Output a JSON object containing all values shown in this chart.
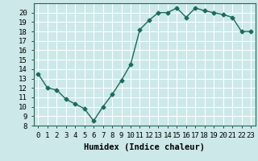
{
  "x": [
    0,
    1,
    2,
    3,
    4,
    5,
    6,
    7,
    8,
    9,
    10,
    11,
    12,
    13,
    14,
    15,
    16,
    17,
    18,
    19,
    20,
    21,
    22,
    23
  ],
  "y": [
    13.5,
    12.0,
    11.8,
    10.8,
    10.3,
    9.8,
    8.5,
    10.0,
    11.3,
    12.8,
    14.5,
    18.2,
    19.2,
    20.0,
    20.0,
    20.5,
    19.5,
    20.5,
    20.2,
    20.0,
    19.8,
    19.5,
    18.0,
    18.0
  ],
  "line_color": "#1a6b5a",
  "marker": "D",
  "marker_size": 2.5,
  "bg_color": "#cce8e8",
  "grid_color": "#ffffff",
  "xlabel": "Humidex (Indice chaleur)",
  "ylim": [
    8,
    21
  ],
  "xlim": [
    -0.5,
    23.5
  ],
  "yticks": [
    8,
    9,
    10,
    11,
    12,
    13,
    14,
    15,
    16,
    17,
    18,
    19,
    20
  ],
  "xticks": [
    0,
    1,
    2,
    3,
    4,
    5,
    6,
    7,
    8,
    9,
    10,
    11,
    12,
    13,
    14,
    15,
    16,
    17,
    18,
    19,
    20,
    21,
    22,
    23
  ],
  "tick_label_fontsize": 6.5,
  "xlabel_fontsize": 7.5,
  "linewidth": 1.0
}
